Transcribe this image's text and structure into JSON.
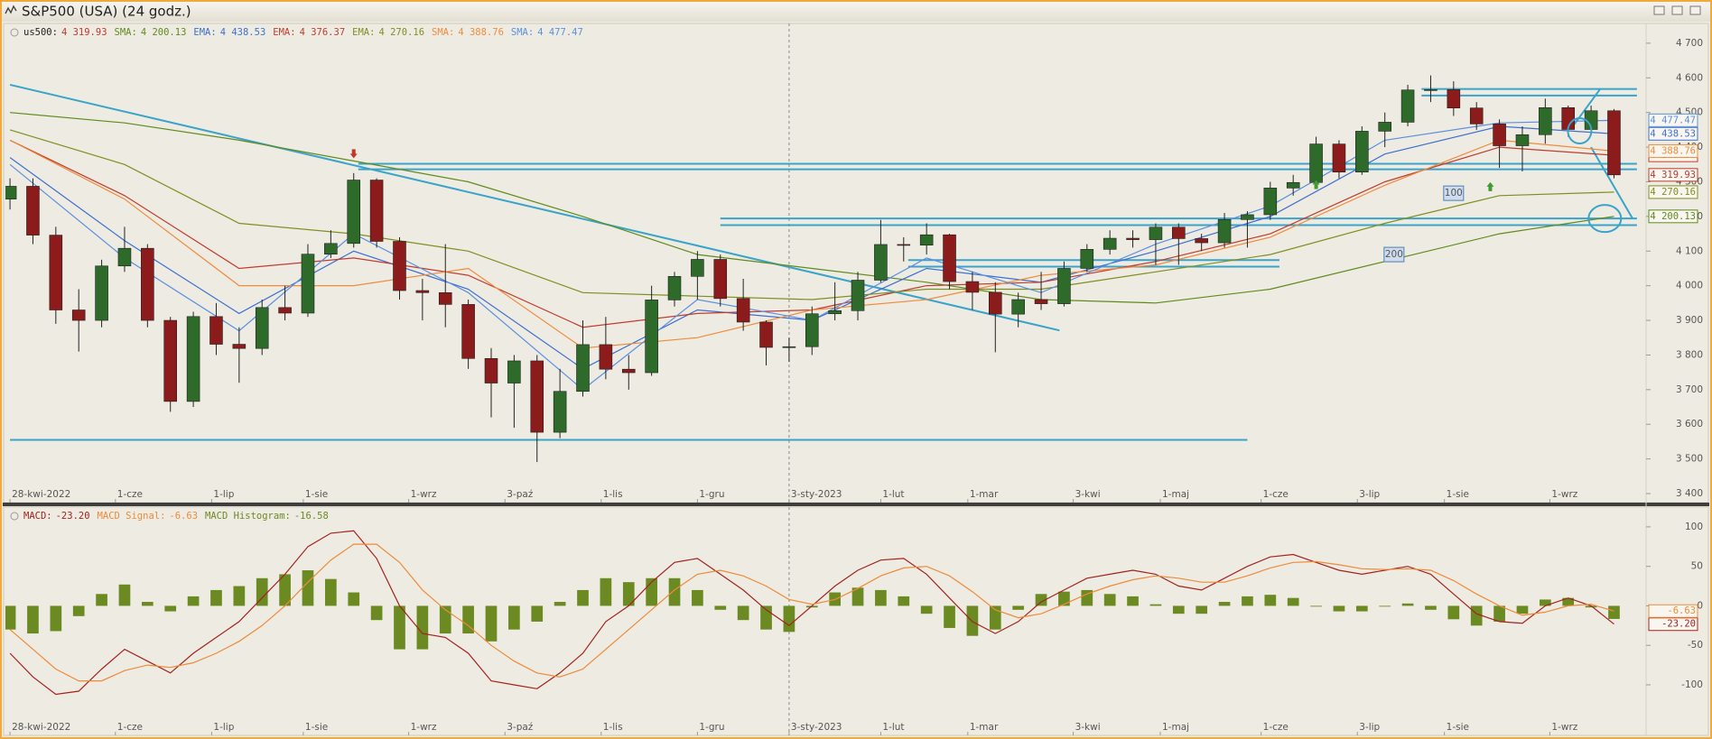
{
  "window": {
    "title": "S&P500 (USA) (24 godz.)"
  },
  "chart_data": [
    {
      "type": "candlestick",
      "name": "us500:",
      "last": {
        "value": 4319.93,
        "label": "4 319.93"
      },
      "up_color": "#2e6b2a",
      "down_color": "#8c1c1c",
      "wick_color": "#222222",
      "xlim": [
        -1,
        357
      ],
      "ylim": [
        3374,
        4757
      ],
      "yticks": [
        {
          "value": 3400,
          "label": "3 400"
        },
        {
          "value": 3500,
          "label": "3 500"
        },
        {
          "value": 3600,
          "label": "3 600"
        },
        {
          "value": 3700,
          "label": "3 700"
        },
        {
          "value": 3800,
          "label": "3 800"
        },
        {
          "value": 3900,
          "label": "3 900"
        },
        {
          "value": 4000,
          "label": "4 000"
        },
        {
          "value": 4100,
          "label": "4 100"
        },
        {
          "value": 4200,
          "label": "4 200"
        },
        {
          "value": 4300,
          "label": "4 300"
        },
        {
          "value": 4400,
          "label": "4 400"
        },
        {
          "value": 4500,
          "label": "4 500"
        },
        {
          "value": 4600,
          "label": "4 600"
        },
        {
          "value": 4700,
          "label": "4 700"
        }
      ],
      "xticks": [
        {
          "value": 0,
          "label": "28-kwi-2022"
        },
        {
          "value": 23,
          "label": "1-cze"
        },
        {
          "value": 44,
          "label": "1-lip"
        },
        {
          "value": 64,
          "label": "1-sie"
        },
        {
          "value": 87,
          "label": "1-wrz"
        },
        {
          "value": 108,
          "label": "3-paź"
        },
        {
          "value": 129,
          "label": "1-lis"
        },
        {
          "value": 150,
          "label": "1-gru"
        },
        {
          "value": 170,
          "label": "3-sty-2023"
        },
        {
          "value": 190,
          "label": "1-lut"
        },
        {
          "value": 209,
          "label": "1-mar"
        },
        {
          "value": 232,
          "label": "3-kwi"
        },
        {
          "value": 251,
          "label": "1-maj"
        },
        {
          "value": 273,
          "label": "1-cze"
        },
        {
          "value": 294,
          "label": "3-lip"
        },
        {
          "value": 313,
          "label": "1-sie"
        },
        {
          "value": 336,
          "label": "1-wrz"
        }
      ],
      "x": [
        0,
        5,
        10,
        15,
        20,
        25,
        30,
        35,
        40,
        45,
        50,
        55,
        60,
        65,
        70,
        75,
        80,
        85,
        90,
        95,
        100,
        105,
        110,
        115,
        120,
        125,
        130,
        135,
        140,
        145,
        150,
        155,
        160,
        165,
        170,
        175,
        180,
        185,
        190,
        195,
        200,
        205,
        210,
        215,
        220,
        225,
        230,
        235,
        240,
        245,
        250,
        255,
        260,
        265,
        270,
        275,
        280,
        285,
        290,
        295,
        300,
        305,
        310,
        315,
        320,
        325,
        330,
        335,
        340,
        345,
        350
      ],
      "open": [
        4250,
        4287,
        4146,
        3930,
        3900,
        4057,
        4108,
        3900,
        3666,
        3911,
        3831,
        3819,
        3937,
        3921,
        4091,
        4122,
        4305,
        4128,
        3986,
        3980,
        3946,
        3790,
        3719,
        3783,
        3577,
        3695,
        3830,
        3759,
        3749,
        3959,
        4027,
        4076,
        3963,
        3895,
        3822,
        3824,
        3919,
        3928,
        4016,
        4119,
        4117,
        4147,
        4012,
        3981,
        3918,
        3960,
        3948,
        4050,
        4105,
        4137,
        4133,
        4169,
        4136,
        4124,
        4191,
        4205,
        4282,
        4298,
        4409,
        4328,
        4446,
        4472,
        4565,
        4566,
        4513,
        4467,
        4404,
        4436,
        4514,
        4451,
        4505
      ],
      "high": [
        4310,
        4310,
        4170,
        3990,
        4075,
        4170,
        4120,
        3910,
        3925,
        3950,
        3880,
        3960,
        4000,
        4120,
        4160,
        4325,
        4310,
        4140,
        4020,
        4120,
        3960,
        3820,
        3800,
        3800,
        3760,
        3900,
        3910,
        3800,
        4000,
        4040,
        4100,
        4090,
        4020,
        3900,
        3850,
        3940,
        4010,
        4040,
        4190,
        4140,
        4180,
        4150,
        4040,
        4010,
        3980,
        4040,
        4070,
        4120,
        4160,
        4160,
        4180,
        4180,
        4150,
        4210,
        4215,
        4300,
        4320,
        4430,
        4420,
        4460,
        4500,
        4580,
        4607,
        4590,
        4530,
        4480,
        4460,
        4540,
        4520,
        4520,
        4510
      ],
      "low": [
        4220,
        4120,
        3890,
        3810,
        3880,
        4040,
        3880,
        3636,
        3650,
        3800,
        3720,
        3800,
        3900,
        3910,
        4080,
        4110,
        4110,
        3960,
        3900,
        3880,
        3760,
        3620,
        3590,
        3491,
        3560,
        3680,
        3730,
        3700,
        3740,
        3940,
        3960,
        3940,
        3870,
        3770,
        3780,
        3800,
        3900,
        3900,
        4010,
        4070,
        4090,
        3990,
        3930,
        3808,
        3880,
        3930,
        3940,
        4040,
        4090,
        4110,
        4060,
        4060,
        4100,
        4110,
        4110,
        4190,
        4260,
        4290,
        4310,
        4320,
        4400,
        4460,
        4530,
        4490,
        4450,
        4340,
        4330,
        4410,
        4430,
        4440,
        4310
      ],
      "close": [
        4287,
        4146,
        3930,
        3900,
        4057,
        4108,
        3900,
        3666,
        3911,
        3831,
        3819,
        3937,
        3921,
        4091,
        4122,
        4305,
        4128,
        3986,
        3980,
        3946,
        3790,
        3719,
        3783,
        3577,
        3695,
        3830,
        3759,
        3749,
        3959,
        4027,
        4076,
        3963,
        3895,
        3822,
        3824,
        3919,
        3928,
        4016,
        4119,
        4117,
        4147,
        4012,
        3981,
        3918,
        3960,
        3948,
        4050,
        4105,
        4137,
        4133,
        4169,
        4136,
        4124,
        4191,
        4205,
        4282,
        4298,
        4409,
        4328,
        4446,
        4472,
        4565,
        4566,
        4513,
        4467,
        4404,
        4436,
        4514,
        4451,
        4505,
        4319.93
      ],
      "overlays": [
        {
          "name": "SMA:",
          "color": "#5f8a1e",
          "last": {
            "value": 4200.13,
            "label": "4 200.13"
          },
          "x": [
            0,
            25,
            50,
            75,
            100,
            125,
            150,
            175,
            200,
            225,
            250,
            275,
            300,
            325,
            350
          ],
          "values": [
            4500,
            4470,
            4420,
            4360,
            4300,
            4200,
            4090,
            4050,
            4010,
            3960,
            3950,
            3990,
            4070,
            4150,
            4200.13
          ]
        },
        {
          "name": "EMA:",
          "color": "#3d6fd1",
          "last": {
            "value": 4438.53,
            "label": "4 438.53"
          },
          "x": [
            0,
            25,
            50,
            75,
            100,
            125,
            150,
            175,
            200,
            225,
            250,
            275,
            300,
            325,
            350
          ],
          "values": [
            4370,
            4130,
            3920,
            4100,
            3990,
            3760,
            3930,
            3900,
            4050,
            4010,
            4100,
            4200,
            4380,
            4460,
            4438.53
          ]
        },
        {
          "name": "EMA:",
          "color": "#c23b2e",
          "last": {
            "value": 4376.37,
            "label": "4 376.37"
          },
          "x": [
            0,
            25,
            50,
            75,
            100,
            125,
            150,
            175,
            200,
            225,
            250,
            275,
            300,
            325,
            350
          ],
          "values": [
            4420,
            4260,
            4050,
            4080,
            4030,
            3880,
            3920,
            3930,
            4000,
            4010,
            4070,
            4150,
            4300,
            4400,
            4376.37
          ]
        },
        {
          "name": "EMA:",
          "color": "#7d8f22",
          "last": {
            "value": 4270.16,
            "label": "4 270.16"
          },
          "x": [
            0,
            25,
            50,
            75,
            100,
            125,
            150,
            175,
            200,
            225,
            250,
            275,
            300,
            325,
            350
          ],
          "values": [
            4450,
            4350,
            4180,
            4150,
            4100,
            3980,
            3970,
            3960,
            3990,
            3990,
            4040,
            4090,
            4180,
            4260,
            4270.16
          ]
        },
        {
          "name": "SMA:",
          "color": "#f08a3c",
          "last": {
            "value": 4388.76,
            "label": "4 388.76"
          },
          "x": [
            0,
            25,
            50,
            75,
            100,
            125,
            150,
            175,
            200,
            225,
            250,
            275,
            300,
            325,
            350
          ],
          "values": [
            4420,
            4250,
            4000,
            4000,
            4050,
            3820,
            3850,
            3930,
            3960,
            4030,
            4060,
            4140,
            4290,
            4420,
            4388.76
          ]
        },
        {
          "name": "SMA:",
          "color": "#5b8fe0",
          "last": {
            "value": 4477.47,
            "label": "4 477.47"
          },
          "x": [
            0,
            25,
            50,
            75,
            100,
            125,
            150,
            175,
            200,
            225,
            250,
            275,
            300,
            325,
            350
          ],
          "values": [
            4350,
            4080,
            3870,
            4150,
            3980,
            3700,
            3960,
            3900,
            4080,
            3980,
            4120,
            4230,
            4420,
            4470,
            4477.47
          ]
        }
      ],
      "drawings_color": "#3aa3c9",
      "drawings": [
        {
          "x": [
            76,
            355
          ],
          "y": [
            4352,
            4352
          ]
        },
        {
          "x": [
            76,
            355
          ],
          "y": [
            4336,
            4336
          ]
        },
        {
          "x": [
            308,
            355
          ],
          "y": [
            4568,
            4568
          ]
        },
        {
          "x": [
            308,
            355
          ],
          "y": [
            4549,
            4549
          ]
        },
        {
          "x": [
            155,
            355
          ],
          "y": [
            4194,
            4194
          ]
        },
        {
          "x": [
            155,
            355
          ],
          "y": [
            4175,
            4175
          ]
        },
        {
          "x": [
            196,
            277
          ],
          "y": [
            4074,
            4074
          ]
        },
        {
          "x": [
            196,
            277
          ],
          "y": [
            4055,
            4055
          ]
        },
        {
          "x": [
            0,
            270
          ],
          "y": [
            3555,
            3555
          ]
        },
        {
          "x": [
            0,
            229
          ],
          "y": [
            4580,
            3871
          ]
        },
        {
          "x": [
            341,
            347
          ],
          "y": [
            4460,
            4568
          ]
        },
        {
          "x": [
            345,
            354
          ],
          "y": [
            4400,
            4195
          ]
        }
      ],
      "period_labels": [
        100,
        200
      ]
    },
    {
      "type": "macd",
      "ylim": [
        -164,
        125
      ],
      "yticks": [
        -100,
        -50,
        0,
        50,
        100
      ],
      "x": [
        0,
        5,
        10,
        15,
        20,
        25,
        30,
        35,
        40,
        45,
        50,
        55,
        60,
        65,
        70,
        75,
        80,
        85,
        90,
        95,
        100,
        105,
        110,
        115,
        120,
        125,
        130,
        135,
        140,
        145,
        150,
        155,
        160,
        165,
        170,
        175,
        180,
        185,
        190,
        195,
        200,
        205,
        210,
        215,
        220,
        225,
        230,
        235,
        240,
        245,
        250,
        255,
        260,
        265,
        270,
        275,
        280,
        285,
        290,
        295,
        300,
        305,
        310,
        315,
        320,
        325,
        330,
        335,
        340,
        345,
        350
      ],
      "series": [
        {
          "name": "MACD:",
          "kind": "line",
          "color": "#a3221e",
          "show_axis_label": true,
          "last": {
            "value": -23.2,
            "label": "-23.20"
          },
          "values": [
            -60,
            -90,
            -112,
            -108,
            -80,
            -55,
            -70,
            -85,
            -60,
            -40,
            -20,
            10,
            40,
            75,
            92,
            95,
            60,
            0,
            -35,
            -40,
            -60,
            -95,
            -100,
            -105,
            -85,
            -60,
            -20,
            0,
            30,
            55,
            60,
            40,
            20,
            -5,
            -25,
            0,
            25,
            45,
            58,
            60,
            40,
            10,
            -20,
            -35,
            -20,
            5,
            20,
            35,
            40,
            45,
            40,
            25,
            20,
            35,
            50,
            62,
            65,
            55,
            45,
            40,
            45,
            50,
            40,
            15,
            -10,
            -20,
            -22,
            0,
            10,
            0,
            -23.2
          ]
        },
        {
          "name": "MACD Signal:",
          "kind": "line",
          "color": "#ee8a3a",
          "show_axis_label": true,
          "last": {
            "value": -6.63,
            "label": "-6.63"
          },
          "values": [
            -30,
            -55,
            -80,
            -95,
            -95,
            -82,
            -75,
            -78,
            -72,
            -60,
            -45,
            -25,
            0,
            30,
            58,
            78,
            78,
            55,
            20,
            -5,
            -25,
            -50,
            -70,
            -85,
            -90,
            -80,
            -55,
            -30,
            -5,
            20,
            40,
            45,
            38,
            25,
            8,
            2,
            8,
            22,
            38,
            48,
            50,
            38,
            18,
            -5,
            -15,
            -10,
            2,
            15,
            25,
            33,
            38,
            35,
            30,
            30,
            38,
            48,
            55,
            56,
            52,
            47,
            46,
            47,
            45,
            32,
            15,
            0,
            -12,
            -8,
            0,
            2,
            -6.63
          ]
        },
        {
          "name": "MACD Histogram:",
          "kind": "bar",
          "color": "#6b8a22",
          "show_axis_label": false,
          "last": {
            "value": -16.58,
            "label": "-16.58"
          },
          "values": [
            -30,
            -35,
            -32,
            -13,
            15,
            27,
            5,
            -7,
            12,
            20,
            25,
            35,
            40,
            45,
            34,
            17,
            -18,
            -55,
            -55,
            -35,
            -35,
            -45,
            -30,
            -20,
            5,
            20,
            35,
            30,
            35,
            35,
            20,
            -5,
            -18,
            -30,
            -33,
            -2,
            17,
            23,
            20,
            12,
            -10,
            -28,
            -38,
            -30,
            -5,
            15,
            18,
            20,
            15,
            12,
            2,
            -10,
            -10,
            5,
            12,
            14,
            10,
            -1,
            -7,
            -7,
            -1,
            3,
            -5,
            -17,
            -25,
            -20,
            -10,
            8,
            10,
            -2,
            -16.58
          ]
        }
      ]
    }
  ]
}
